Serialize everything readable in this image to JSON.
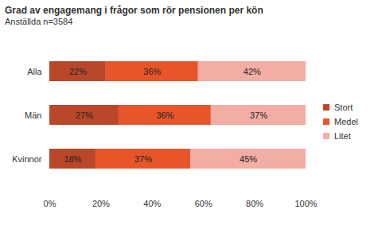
{
  "chart_data": {
    "type": "bar",
    "title": "Grad av engagemang i frågor som rör pensionen per kön",
    "subtitle": "Anställda n=3584",
    "orientation": "horizontal",
    "stacked": true,
    "data_labels": true,
    "legend": "right",
    "categories": [
      "Alla",
      "Män",
      "Kvinnor"
    ],
    "series": [
      {
        "name": "Stort",
        "color": "#B9472A",
        "values": [
          22,
          27,
          18
        ],
        "value_labels": [
          "22%",
          "27%",
          "18%"
        ]
      },
      {
        "name": "Medel",
        "color": "#E8552A",
        "values": [
          36,
          36,
          37
        ],
        "value_labels": [
          "36%",
          "36%",
          "37%"
        ]
      },
      {
        "name": "Litet",
        "color": "#F2ADA4",
        "values": [
          42,
          37,
          45
        ],
        "value_labels": [
          "42%",
          "37%",
          "45%"
        ]
      }
    ],
    "xlim": [
      0,
      100
    ],
    "xticks": [
      {
        "value": 0,
        "label": "0%"
      },
      {
        "value": 20,
        "label": "20%"
      },
      {
        "value": 40,
        "label": "40%"
      },
      {
        "value": 60,
        "label": "60%"
      },
      {
        "value": 80,
        "label": "80%"
      },
      {
        "value": 100,
        "label": "100%"
      }
    ]
  }
}
